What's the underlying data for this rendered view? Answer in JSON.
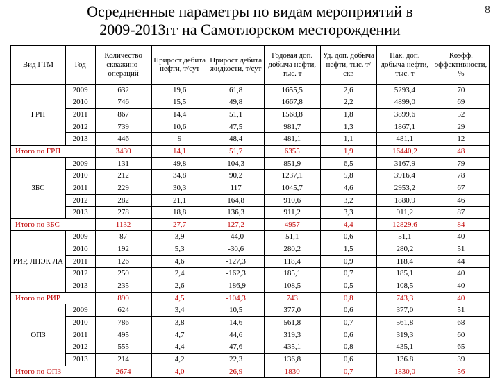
{
  "page_number": "8",
  "title_lines": [
    "Осредненные параметры по видам мероприятий в",
    "2009-2013гг на Самотлорском месторождении"
  ],
  "columns": [
    "Вид ГТМ",
    "Год",
    "Количество скважино-операций",
    "Прирост дебита нефти, т/сут",
    "Прирост дебита жидкости, т/сут",
    "Годовая доп. добыча нефти, тыс. т",
    "Уд. доп. добыча нефти, тыс. т/скв",
    "Нак. доп. добыча нефти, тыс. т",
    "Коэфф. эффективности, %"
  ],
  "groups": [
    {
      "name": "ГРП",
      "sum_label": "Итого по ГРП",
      "rows": [
        {
          "year": "2009",
          "c": [
            "632",
            "19,6",
            "61,8",
            "1655,5",
            "2,6",
            "5293,4",
            "70"
          ]
        },
        {
          "year": "2010",
          "c": [
            "746",
            "15,5",
            "49,8",
            "1667,8",
            "2,2",
            "4899,0",
            "69"
          ]
        },
        {
          "year": "2011",
          "c": [
            "867",
            "14,4",
            "51,1",
            "1568,8",
            "1,8",
            "3899,6",
            "52"
          ]
        },
        {
          "year": "2012",
          "c": [
            "739",
            "10,6",
            "47,5",
            "981,7",
            "1,3",
            "1867,1",
            "29"
          ]
        },
        {
          "year": "2013",
          "c": [
            "446",
            "9",
            "48,4",
            "481,1",
            "1,1",
            "481,1",
            "12"
          ]
        }
      ],
      "sum": [
        "3430",
        "14,1",
        "51,7",
        "6355",
        "1,9",
        "16440,2",
        "48"
      ]
    },
    {
      "name": "ЗБС",
      "sum_label": "Итого по ЗБС",
      "rows": [
        {
          "year": "2009",
          "c": [
            "131",
            "49,8",
            "104,3",
            "851,9",
            "6,5",
            "3167,9",
            "79"
          ]
        },
        {
          "year": "2010",
          "c": [
            "212",
            "34,8",
            "90,2",
            "1237,1",
            "5,8",
            "3916,4",
            "78"
          ]
        },
        {
          "year": "2011",
          "c": [
            "229",
            "30,3",
            "117",
            "1045,7",
            "4,6",
            "2953,2",
            "67"
          ]
        },
        {
          "year": "2012",
          "c": [
            "282",
            "21,1",
            "164,8",
            "910,6",
            "3,2",
            "1880,9",
            "46"
          ]
        },
        {
          "year": "2013",
          "c": [
            "278",
            "18,8",
            "136,3",
            "911,2",
            "3,3",
            "911,2",
            "87"
          ]
        }
      ],
      "sum": [
        "1132",
        "27,7",
        "127,2",
        "4957",
        "4,4",
        "12829,6",
        "84"
      ]
    },
    {
      "name": "РИР, ЛНЭК ЛА",
      "sum_label": "Итого по РИР",
      "rows": [
        {
          "year": "2009",
          "c": [
            "87",
            "3,9",
            "-44,0",
            "51,1",
            "0,6",
            "51,1",
            "40"
          ]
        },
        {
          "year": "2010",
          "c": [
            "192",
            "5,3",
            "-30,6",
            "280,2",
            "1,5",
            "280,2",
            "51"
          ]
        },
        {
          "year": "2011",
          "c": [
            "126",
            "4,6",
            "-127,3",
            "118,4",
            "0,9",
            "118,4",
            "44"
          ]
        },
        {
          "year": "2012",
          "c": [
            "250",
            "2,4",
            "-162,3",
            "185,1",
            "0,7",
            "185,1",
            "40"
          ]
        },
        {
          "year": "2013",
          "c": [
            "235",
            "2,6",
            "-186,9",
            "108,5",
            "0,5",
            "108,5",
            "40"
          ]
        }
      ],
      "sum": [
        "890",
        "4,5",
        "-104,3",
        "743",
        "0,8",
        "743,3",
        "40"
      ]
    },
    {
      "name": "ОПЗ",
      "sum_label": "Итого по ОПЗ",
      "rows": [
        {
          "year": "2009",
          "c": [
            "624",
            "3,4",
            "10,5",
            "377,0",
            "0,6",
            "377,0",
            "51"
          ]
        },
        {
          "year": "2010",
          "c": [
            "786",
            "3,8",
            "14,6",
            "561,8",
            "0,7",
            "561,8",
            "68"
          ]
        },
        {
          "year": "2011",
          "c": [
            "495",
            "4,7",
            "44,6",
            "319,3",
            "0,6",
            "319,3",
            "60"
          ]
        },
        {
          "year": "2012",
          "c": [
            "555",
            "4,4",
            "47,6",
            "435,1",
            "0,8",
            "435,1",
            "65"
          ]
        },
        {
          "year": "2013",
          "c": [
            "214",
            "4,2",
            "22,3",
            "136,8",
            "0,6",
            "136.8",
            "39"
          ]
        }
      ],
      "sum": [
        "2674",
        "4,0",
        "26,9",
        "1830",
        "0,7",
        "1830,0",
        "56"
      ]
    }
  ]
}
